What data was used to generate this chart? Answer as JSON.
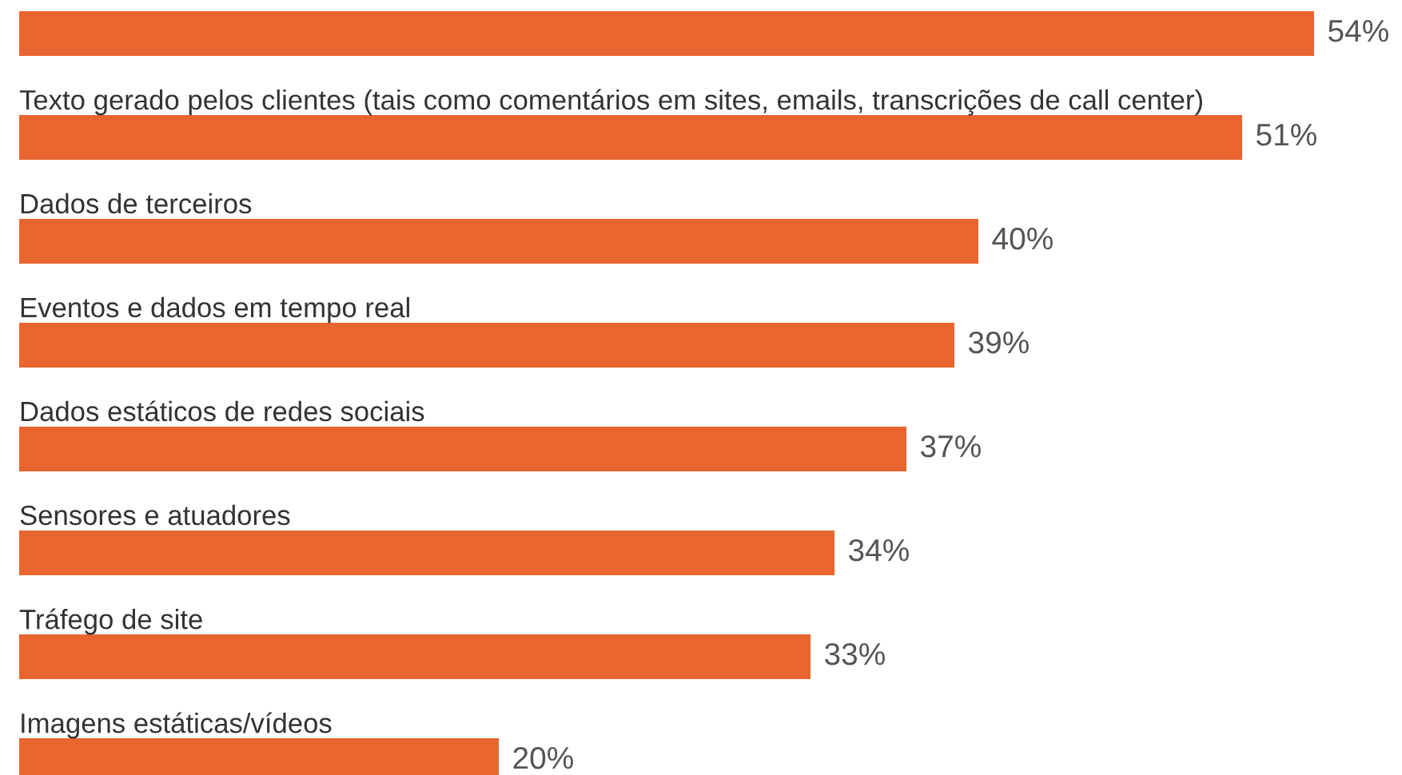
{
  "chart_data": {
    "type": "bar",
    "orientation": "horizontal",
    "categories": [
      null,
      "Texto gerado pelos clientes (tais como comentários em sites, emails, transcrições de call center)",
      "Dados de terceiros",
      "Eventos e dados em tempo real",
      "Dados estáticos de redes sociais",
      "Sensores e atuadores",
      "Tráfego de site",
      "Imagens estáticas/vídeos"
    ],
    "values": [
      54,
      51,
      40,
      39,
      37,
      34,
      33,
      20
    ],
    "value_labels": [
      "54%",
      "51%",
      "40%",
      "39%",
      "37%",
      "34%",
      "33%",
      "20%"
    ],
    "color": "#e8652f"
  }
}
